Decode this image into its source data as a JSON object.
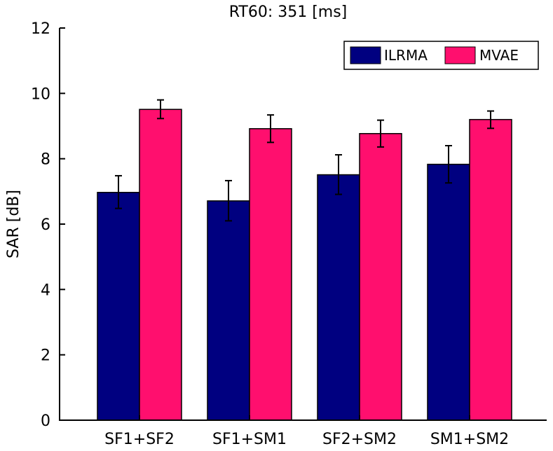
{
  "chart_data": {
    "type": "bar",
    "title": "RT60: 351 [ms]",
    "xlabel": "",
    "ylabel": "SAR [dB]",
    "ylim": [
      0,
      12
    ],
    "yticks": [
      "0",
      "2",
      "4",
      "6",
      "8",
      "10",
      "12"
    ],
    "categories": [
      "SF1+SF2",
      "SF1+SM1",
      "SF2+SM2",
      "SM1+SM2"
    ],
    "series": [
      {
        "name": "ILRMA",
        "color": "#000080",
        "values": [
          6.97,
          6.71,
          7.51,
          7.83
        ],
        "error_low": [
          6.48,
          6.1,
          6.91,
          7.26
        ],
        "error_high": [
          7.48,
          7.33,
          8.12,
          8.4
        ]
      },
      {
        "name": "MVAE",
        "color": "#ff0f6e",
        "values": [
          9.51,
          8.92,
          8.77,
          9.2
        ],
        "error_low": [
          9.23,
          8.5,
          8.36,
          8.93
        ],
        "error_high": [
          9.8,
          9.34,
          9.18,
          9.46
        ]
      }
    ],
    "legend_position": "top-right",
    "grid": false
  }
}
